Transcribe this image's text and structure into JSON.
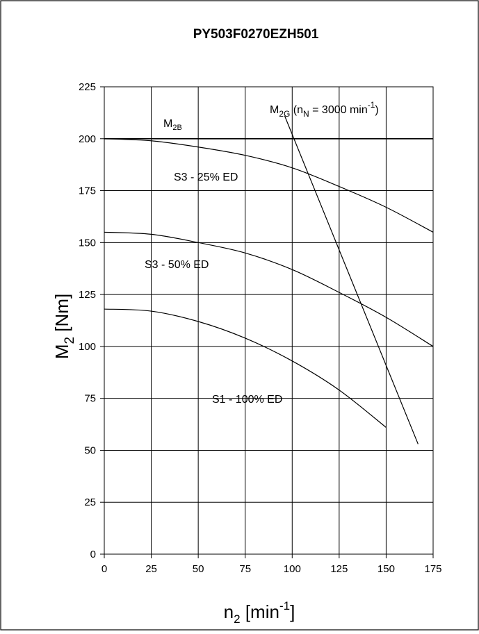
{
  "chart_data": {
    "type": "line",
    "title": "PY503F0270EZH501",
    "xlabel": {
      "base": "n",
      "sub": "2",
      "mid": " [min",
      "sup": "-1",
      "end": "]"
    },
    "ylabel": {
      "base": "M",
      "sub": "2",
      "end": " [Nm]"
    },
    "xlim": [
      0,
      175
    ],
    "ylim": [
      0,
      225
    ],
    "x_ticks": [
      "0",
      "25",
      "50",
      "75",
      "100",
      "125",
      "150",
      "175"
    ],
    "y_ticks": [
      "0",
      "25",
      "50",
      "75",
      "100",
      "125",
      "150",
      "175",
      "200",
      "225"
    ],
    "grid": true,
    "series": [
      {
        "name": "M2B",
        "points": [
          [
            0,
            200
          ],
          [
            175,
            200
          ]
        ]
      },
      {
        "name": "S3 - 25% ED",
        "points": [
          [
            0,
            200
          ],
          [
            25,
            199
          ],
          [
            50,
            196
          ],
          [
            75,
            192
          ],
          [
            100,
            186
          ],
          [
            125,
            177
          ],
          [
            150,
            167
          ],
          [
            175,
            155
          ]
        ]
      },
      {
        "name": "S3 - 50% ED",
        "points": [
          [
            0,
            155
          ],
          [
            25,
            154
          ],
          [
            50,
            150
          ],
          [
            75,
            145
          ],
          [
            100,
            137
          ],
          [
            125,
            126
          ],
          [
            150,
            114
          ],
          [
            175,
            100
          ]
        ]
      },
      {
        "name": "S1 - 100% ED",
        "points": [
          [
            0,
            118
          ],
          [
            25,
            117
          ],
          [
            50,
            112
          ],
          [
            75,
            104
          ],
          [
            100,
            93
          ],
          [
            125,
            79
          ],
          [
            150,
            61
          ]
        ]
      },
      {
        "name": "M2G (nN = 3000 min-1)",
        "points": [
          [
            96,
            211
          ],
          [
            167,
            53
          ]
        ]
      }
    ],
    "labels": {
      "m2b": {
        "base": "M",
        "sub": "2B"
      },
      "m2g": {
        "base": "M",
        "sub": "2G",
        "mid": " (n",
        "sub2": "N",
        "mid2": " = 3000 min",
        "sup": "-1",
        "end": ")"
      },
      "s3_25": "S3 - 25% ED",
      "s3_50": "S3 - 50% ED",
      "s1_100": "S1 - 100% ED"
    }
  }
}
